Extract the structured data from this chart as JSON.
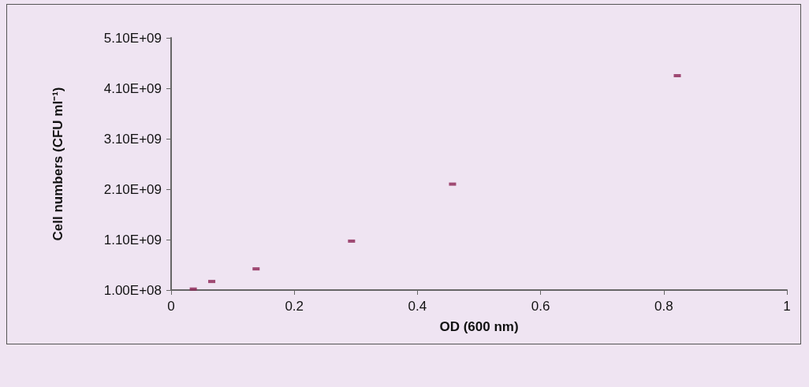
{
  "chart_data": {
    "type": "scatter",
    "xlabel": "OD (600 nm)",
    "ylabel": "Cell numbers (CFU ml⁻¹)",
    "x": [
      0.036,
      0.066,
      0.138,
      0.293,
      0.457,
      0.822
    ],
    "series": [
      {
        "color": "#8b2252",
        "values": [
          120000000,
          270000000,
          520000000,
          1070000000,
          2200000000,
          4350000000
        ]
      }
    ],
    "xlim": [
      0,
      1
    ],
    "xticks": [
      0,
      0.2,
      0.4,
      0.6,
      0.8,
      1
    ],
    "ylim": [
      100000000,
      5100000000
    ],
    "yticks": [
      {
        "value": 100000000,
        "label": "1.00E+08"
      },
      {
        "value": 1100000000,
        "label": "1.10E+09"
      },
      {
        "value": 2100000000,
        "label": "2.10E+09"
      },
      {
        "value": 3100000000,
        "label": "3.10E+09"
      },
      {
        "value": 4100000000,
        "label": "4.10E+09"
      },
      {
        "value": 5100000000,
        "label": "5.10E+09"
      }
    ],
    "grid": false,
    "marker": "square"
  }
}
